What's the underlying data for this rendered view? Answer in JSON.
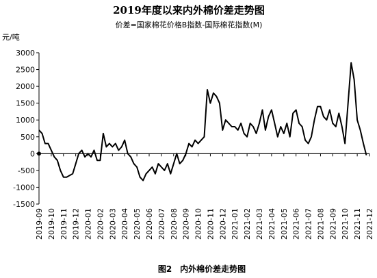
{
  "chart_data": {
    "type": "line",
    "title": "2019年度以来内外棉价差走势图",
    "subtitle": "价差=国家棉花价格B指数-国际棉花指数(M)",
    "y_label": "元/吨",
    "caption": "图2　内外棉价差走势图",
    "categories": [
      "2019-09",
      null,
      null,
      null,
      "2019-10",
      null,
      null,
      null,
      "2019-11",
      null,
      null,
      null,
      "2019-12",
      null,
      null,
      null,
      "2020-01",
      null,
      null,
      null,
      "2020-02",
      null,
      null,
      null,
      "2020-03",
      null,
      null,
      null,
      "2020-04",
      null,
      null,
      null,
      "2020-05",
      null,
      null,
      null,
      "2020-06",
      null,
      null,
      null,
      "2020-07",
      null,
      null,
      null,
      "2020-08",
      null,
      null,
      null,
      "2020-09",
      null,
      null,
      null,
      "2020-10",
      null,
      null,
      null,
      "2020-11",
      null,
      null,
      null,
      "2020-12",
      null,
      null,
      null,
      "2021-01",
      null,
      null,
      null,
      "2021-02",
      null,
      null,
      null,
      "2021-03",
      null,
      null,
      null,
      "2021-04",
      null,
      null,
      null,
      "2021-05",
      null,
      null,
      null,
      "2021-06",
      null,
      null,
      null,
      "2021-07",
      null,
      null,
      null,
      "2021-08",
      null,
      null,
      null,
      "2021-09",
      null,
      null,
      null,
      "2021-10",
      null,
      null,
      null,
      "2021-11",
      null,
      null,
      null,
      "2021-12"
    ],
    "series": [
      {
        "name": "价差",
        "color": "#000000",
        "values": [
          700,
          600,
          300,
          300,
          100,
          -100,
          -200,
          -500,
          -700,
          -700,
          -650,
          -600,
          -300,
          0,
          100,
          -100,
          0,
          -100,
          100,
          -200,
          -200,
          600,
          200,
          300,
          200,
          300,
          100,
          200,
          400,
          0,
          -100,
          -300,
          -400,
          -700,
          -800,
          -600,
          -500,
          -400,
          -600,
          -300,
          -400,
          -500,
          -300,
          -600,
          -300,
          0,
          -300,
          -200,
          0,
          300,
          200,
          400,
          300,
          400,
          500,
          1900,
          1500,
          1800,
          1700,
          1500,
          700,
          1000,
          900,
          800,
          800,
          700,
          900,
          600,
          500,
          900,
          800,
          600,
          900,
          1300,
          700,
          1100,
          1300,
          900,
          500,
          800,
          600,
          900,
          500,
          1200,
          1300,
          900,
          800,
          400,
          300,
          500,
          1000,
          1400,
          1400,
          1100,
          1000,
          1300,
          900,
          800,
          1200,
          800,
          300,
          1500,
          2700,
          2200,
          1000,
          700,
          300,
          -50,
          null
        ]
      }
    ],
    "ylim": [
      -1500,
      3000
    ],
    "yticks": [
      -1500,
      -1000,
      -500,
      0,
      500,
      1000,
      1500,
      2000,
      2500,
      3000
    ],
    "grid": false
  }
}
